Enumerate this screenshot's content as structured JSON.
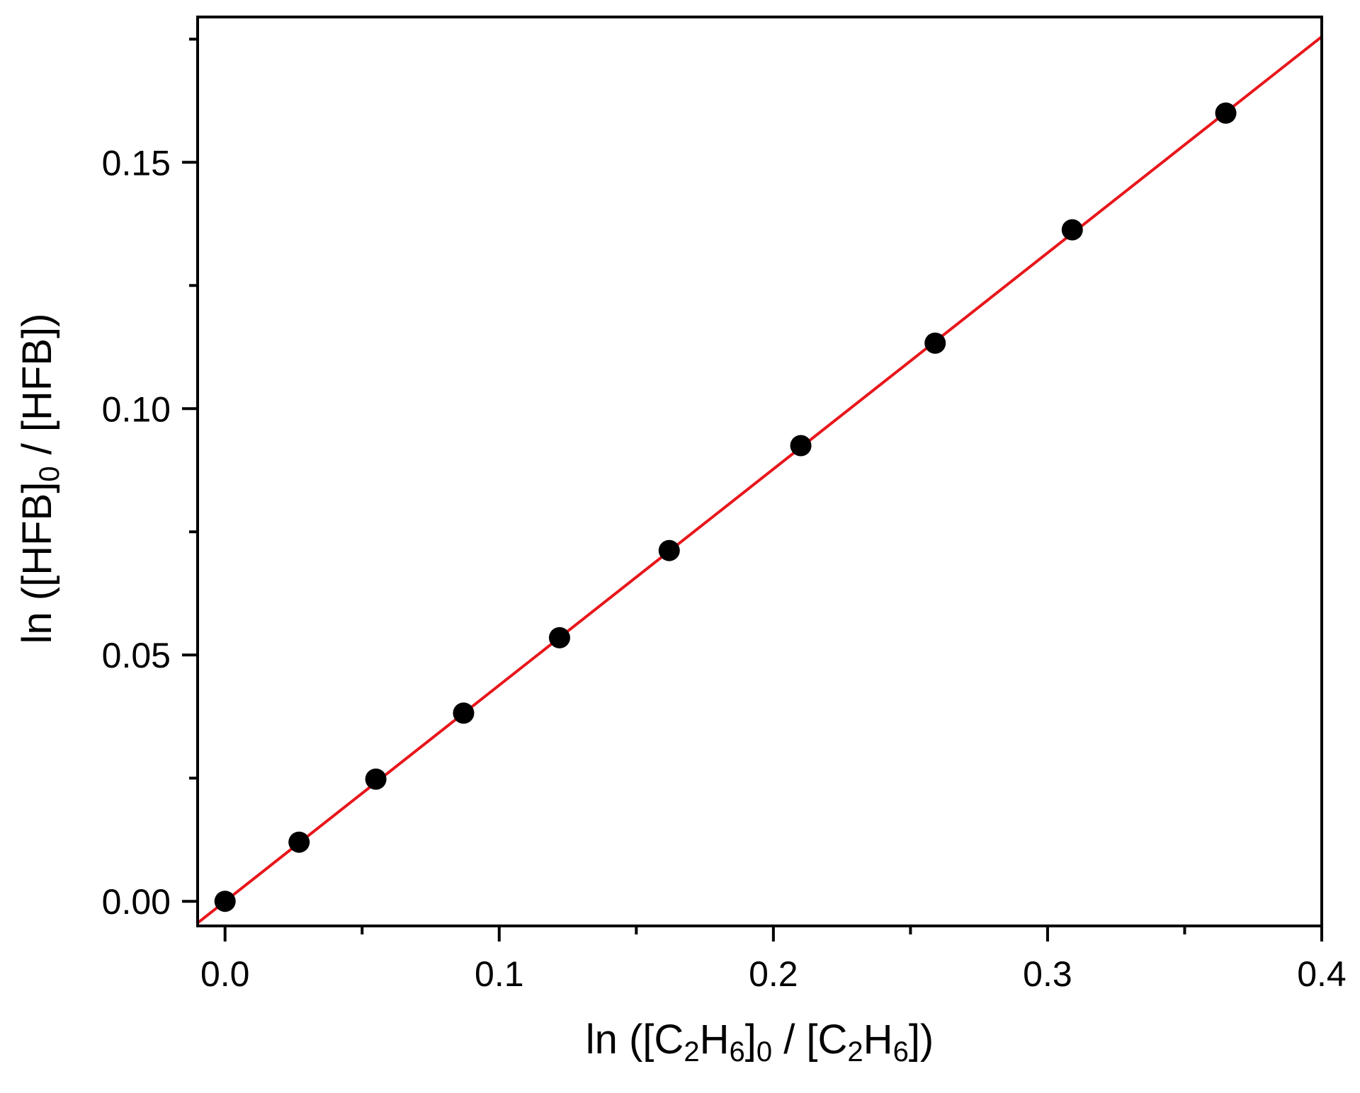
{
  "chart_data": {
    "type": "scatter",
    "title": "",
    "xlabel": {
      "parts": [
        {
          "text": "ln ([C",
          "kind": "normal"
        },
        {
          "text": "2",
          "kind": "sub"
        },
        {
          "text": "H",
          "kind": "normal"
        },
        {
          "text": "6",
          "kind": "sub"
        },
        {
          "text": "]",
          "kind": "normal"
        },
        {
          "text": "0",
          "kind": "sub"
        },
        {
          "text": " / [C",
          "kind": "normal"
        },
        {
          "text": "2",
          "kind": "sub"
        },
        {
          "text": "H",
          "kind": "normal"
        },
        {
          "text": "6",
          "kind": "sub"
        },
        {
          "text": "])",
          "kind": "normal"
        }
      ]
    },
    "ylabel": {
      "parts": [
        {
          "text": "ln ([HFB]",
          "kind": "normal"
        },
        {
          "text": "0",
          "kind": "sub"
        },
        {
          "text": " / [HFB])",
          "kind": "normal"
        }
      ]
    },
    "xlim": [
      -0.01,
      0.4
    ],
    "ylim": [
      -0.005,
      0.1795
    ],
    "xticks": [
      0.0,
      0.1,
      0.2,
      0.3,
      0.4
    ],
    "xtick_labels": [
      "0.0",
      "0.1",
      "0.2",
      "0.3",
      "0.4"
    ],
    "x_minor_ticks": [
      0.05,
      0.15,
      0.25,
      0.35
    ],
    "yticks": [
      0.0,
      0.05,
      0.1,
      0.15
    ],
    "ytick_labels": [
      "0.00",
      "0.05",
      "0.10",
      "0.15"
    ],
    "y_minor_ticks": [
      0.025,
      0.075,
      0.125,
      0.175
    ],
    "grid": false,
    "series": [
      {
        "kind": "points",
        "color": "#000000",
        "x": [
          0.0,
          0.027,
          0.055,
          0.087,
          0.122,
          0.162,
          0.21,
          0.259,
          0.309,
          0.365
        ],
        "y": [
          0.0,
          0.012,
          0.0248,
          0.0382,
          0.0535,
          0.0712,
          0.0925,
          0.1133,
          0.1363,
          0.16
        ]
      },
      {
        "kind": "fit-line",
        "color": "#e8161b",
        "x": [
          -0.01,
          0.4
        ],
        "y": [
          -0.0044,
          0.1755
        ]
      }
    ]
  }
}
